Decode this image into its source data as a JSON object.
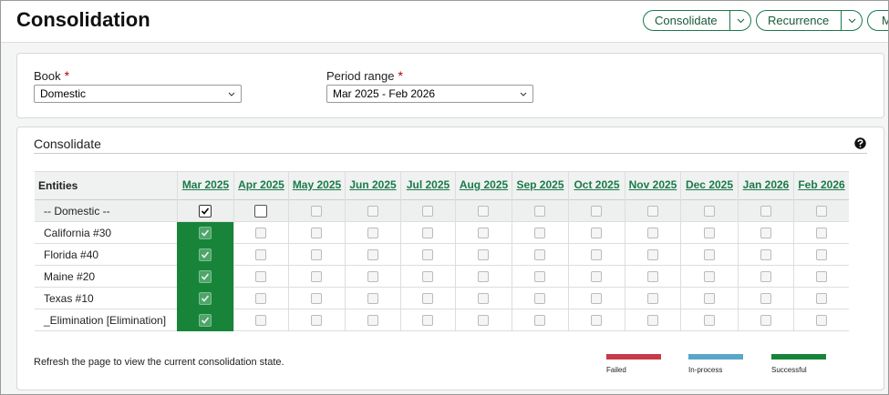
{
  "header": {
    "title": "Consolidation",
    "buttons": [
      "Consolidate",
      "Recurrence",
      "M"
    ]
  },
  "form": {
    "book_label": "Book",
    "book_value": "Domestic",
    "period_label": "Period range",
    "period_value": "Mar 2025 - Feb 2026",
    "required_mark": "*"
  },
  "section": {
    "title": "Consolidate"
  },
  "table": {
    "entity_header": "Entities",
    "months": [
      "Mar 2025",
      "Apr 2025",
      "May 2025",
      "Jun 2025",
      "Jul 2025",
      "Aug 2025",
      "Sep 2025",
      "Oct 2025",
      "Nov 2025",
      "Dec 2025",
      "Jan 2026",
      "Feb 2026"
    ],
    "rows": [
      "-- Domestic --",
      "California #30",
      "Florida #40",
      "Maine #20",
      "Texas #10",
      "_Elimination [Elimination]"
    ]
  },
  "note": "Refresh the page to view the current consolidation state.",
  "legend": [
    "Failed",
    "In-process",
    "Successful"
  ]
}
